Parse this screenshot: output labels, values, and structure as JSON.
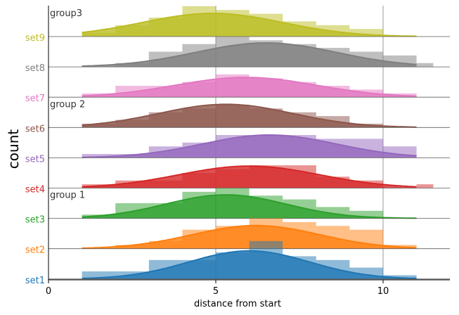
{
  "chart_data": {
    "type": "ridgeline",
    "ylabel": "count",
    "xlabel": "distance from start",
    "xlim": [
      0,
      12
    ],
    "xticks": [
      0,
      5,
      10
    ],
    "xtick_labels": [
      "0",
      "5",
      "10"
    ],
    "bin_width": 1,
    "group_labels": [
      "group 1",
      "group 2",
      "group3"
    ],
    "series": [
      {
        "name": "set1",
        "color": "#1f77b4",
        "group": "group 1",
        "bins": [
          [
            1,
            2
          ],
          [
            2,
            3
          ],
          [
            3,
            4
          ],
          [
            4,
            5
          ],
          [
            5,
            6
          ],
          [
            6,
            7
          ],
          [
            7,
            8
          ],
          [
            8,
            9
          ],
          [
            9,
            10
          ],
          [
            10,
            11
          ]
        ],
        "counts": [
          2,
          2,
          5,
          5,
          7,
          10,
          6,
          5,
          3,
          1
        ],
        "peak": 7.4
      },
      {
        "name": "set2",
        "color": "#ff7f0e",
        "group": "group 1",
        "bins": [
          [
            1,
            2
          ],
          [
            2,
            3
          ],
          [
            3,
            4
          ],
          [
            4,
            5
          ],
          [
            5,
            6
          ],
          [
            6,
            7
          ],
          [
            7,
            8
          ],
          [
            8,
            9
          ],
          [
            9,
            10
          ],
          [
            10,
            11
          ]
        ],
        "counts": [
          0,
          1,
          2,
          5,
          6,
          8,
          7,
          6,
          5,
          1
        ],
        "peak": 6.1
      },
      {
        "name": "set3",
        "color": "#2ca02c",
        "group": "group 1",
        "bins": [
          [
            1,
            2
          ],
          [
            2,
            3
          ],
          [
            3,
            4
          ],
          [
            4,
            5
          ],
          [
            5,
            6
          ],
          [
            6,
            7
          ],
          [
            7,
            8
          ],
          [
            8,
            9
          ],
          [
            9,
            10
          ]
        ],
        "counts": [
          1,
          4,
          4,
          7,
          8,
          6,
          5,
          3,
          2
        ],
        "peak": 6.2
      },
      {
        "name": "set4",
        "color": "#d62728",
        "group": "group 2",
        "bins": [
          [
            0.5,
            1
          ],
          [
            1,
            2
          ],
          [
            2,
            3
          ],
          [
            3,
            4
          ],
          [
            4,
            5
          ],
          [
            5,
            6
          ],
          [
            6,
            7
          ],
          [
            7,
            8
          ],
          [
            8,
            9
          ],
          [
            9,
            10
          ],
          [
            10,
            11
          ],
          [
            11,
            11.5
          ]
        ],
        "counts": [
          0,
          1,
          2,
          2,
          4,
          5,
          6,
          6,
          3,
          2,
          0,
          1
        ],
        "peak": 5.8
      },
      {
        "name": "set5",
        "color": "#9467bd",
        "group": "group 2",
        "bins": [
          [
            1,
            2
          ],
          [
            2,
            3
          ],
          [
            3,
            4
          ],
          [
            4,
            5
          ],
          [
            5,
            6
          ],
          [
            6,
            7
          ],
          [
            7,
            8
          ],
          [
            8,
            9
          ],
          [
            9,
            10
          ],
          [
            10,
            11
          ],
          [
            11,
            11.5
          ]
        ],
        "counts": [
          1,
          1,
          3,
          4,
          6,
          6,
          6,
          5,
          5,
          3,
          0
        ],
        "peak": 6.0
      },
      {
        "name": "set6",
        "color": "#8c564b",
        "group": "group 2",
        "bins": [
          [
            1,
            2
          ],
          [
            2,
            3
          ],
          [
            3,
            4
          ],
          [
            4,
            5
          ],
          [
            5,
            6
          ],
          [
            6,
            7
          ],
          [
            7,
            8
          ],
          [
            8,
            9
          ],
          [
            9,
            10
          ],
          [
            10,
            11
          ]
        ],
        "counts": [
          1,
          2,
          4,
          5,
          6,
          5,
          4,
          3,
          1,
          0
        ],
        "peak": 6.1
      },
      {
        "name": "set7",
        "color": "#e377c2",
        "group": "group3",
        "bins": [
          [
            0.5,
            1
          ],
          [
            1,
            2
          ],
          [
            2,
            3
          ],
          [
            3,
            4
          ],
          [
            4,
            5
          ],
          [
            5,
            6
          ],
          [
            6,
            7
          ],
          [
            7,
            8
          ],
          [
            8,
            9
          ],
          [
            9,
            10
          ],
          [
            10,
            11
          ],
          [
            11,
            11.5
          ]
        ],
        "counts": [
          0,
          1,
          3,
          3,
          4,
          6,
          5,
          4,
          3,
          2,
          1,
          0
        ],
        "peak": 5.2
      },
      {
        "name": "set8",
        "color": "#7f7f7f",
        "group": "group3",
        "bins": [
          [
            1,
            2
          ],
          [
            2,
            3
          ],
          [
            3,
            4
          ],
          [
            4,
            5
          ],
          [
            5,
            6
          ],
          [
            6,
            7
          ],
          [
            7,
            8
          ],
          [
            8,
            9
          ],
          [
            9,
            10
          ],
          [
            10,
            11
          ],
          [
            11,
            11.5
          ]
        ],
        "counts": [
          0,
          1,
          4,
          6,
          8,
          7,
          6,
          5,
          4,
          3,
          1
        ],
        "peak": 6.3
      },
      {
        "name": "set9",
        "color": "#bcbd22",
        "group": "group3",
        "bins": [
          [
            1,
            2
          ],
          [
            2,
            3
          ],
          [
            3,
            4
          ],
          [
            4,
            5
          ],
          [
            5,
            6
          ],
          [
            6,
            7
          ],
          [
            7,
            8
          ],
          [
            8,
            9
          ],
          [
            9,
            10
          ],
          [
            10,
            11
          ]
        ],
        "counts": [
          1,
          3,
          5,
          8,
          7,
          6,
          4,
          3,
          2,
          0
        ],
        "peak": 6.1
      }
    ],
    "density_curves": [
      {
        "name": "set1",
        "mean": 6.0,
        "sd": 1.8,
        "peak": 7.4
      },
      {
        "name": "set2",
        "mean": 6.2,
        "sd": 1.9,
        "peak": 6.1
      },
      {
        "name": "set3",
        "mean": 5.3,
        "sd": 1.8,
        "peak": 6.2
      },
      {
        "name": "set4",
        "mean": 6.0,
        "sd": 2.1,
        "peak": 5.8
      },
      {
        "name": "set5",
        "mean": 6.6,
        "sd": 2.0,
        "peak": 6.0
      },
      {
        "name": "set6",
        "mean": 5.3,
        "sd": 2.0,
        "peak": 6.1
      },
      {
        "name": "set7",
        "mean": 5.9,
        "sd": 2.1,
        "peak": 5.2
      },
      {
        "name": "set8",
        "mean": 6.5,
        "sd": 2.1,
        "peak": 6.3
      },
      {
        "name": "set9",
        "mean": 4.9,
        "sd": 2.1,
        "peak": 6.1
      }
    ],
    "grid": true,
    "vertical_gridlines": [
      5,
      10
    ]
  }
}
